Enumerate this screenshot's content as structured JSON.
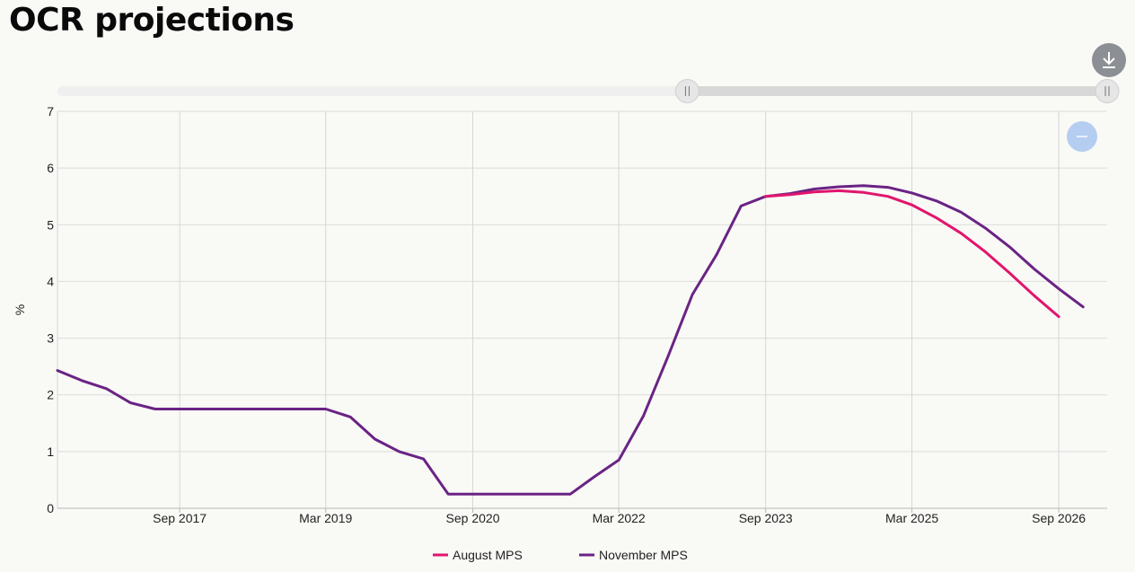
{
  "title": "OCR projections",
  "toolbar": {
    "download_icon": "download-icon",
    "zoom_icon": "zoom-out-icon"
  },
  "range_slider": {
    "start": 0.6,
    "end": 1.0
  },
  "chart_data": {
    "type": "line",
    "xlabel": "",
    "ylabel": "%",
    "ylim": [
      0,
      7
    ],
    "yticks": [
      0,
      1,
      2,
      3,
      4,
      5,
      6,
      7
    ],
    "xlim": [
      "2016-06-01",
      "2027-03-01"
    ],
    "xticks": [
      {
        "date": "2017-09-01",
        "label": "Sep 2017"
      },
      {
        "date": "2019-03-01",
        "label": "Mar 2019"
      },
      {
        "date": "2020-09-01",
        "label": "Sep 2020"
      },
      {
        "date": "2022-03-01",
        "label": "Mar 2022"
      },
      {
        "date": "2023-09-01",
        "label": "Sep 2023"
      },
      {
        "date": "2025-03-01",
        "label": "Mar 2025"
      },
      {
        "date": "2026-09-01",
        "label": "Sep 2026"
      }
    ],
    "grid": true,
    "legend": "bottom",
    "colors": {
      "August MPS": "#e2156c",
      "November MPS": "#6a2384"
    },
    "series": [
      {
        "name": "August MPS",
        "x": [
          "2023-09-01",
          "2023-12-01",
          "2024-03-01",
          "2024-06-01",
          "2024-09-01",
          "2024-12-01",
          "2025-03-01",
          "2025-06-01",
          "2025-09-01",
          "2025-12-01",
          "2026-03-01",
          "2026-06-01",
          "2026-09-01"
        ],
        "values": [
          5.5,
          5.53,
          5.58,
          5.6,
          5.57,
          5.5,
          5.35,
          5.12,
          4.85,
          4.52,
          4.15,
          3.75,
          3.38
        ]
      },
      {
        "name": "November MPS",
        "x": [
          "2016-06-01",
          "2016-09-01",
          "2016-12-01",
          "2017-03-01",
          "2017-06-01",
          "2017-09-01",
          "2017-12-01",
          "2018-03-01",
          "2018-06-01",
          "2018-09-01",
          "2018-12-01",
          "2019-03-01",
          "2019-06-01",
          "2019-09-01",
          "2019-12-01",
          "2020-03-01",
          "2020-06-01",
          "2020-09-01",
          "2020-12-01",
          "2021-03-01",
          "2021-06-01",
          "2021-09-01",
          "2021-12-01",
          "2022-03-01",
          "2022-06-01",
          "2022-09-01",
          "2022-12-01",
          "2023-03-01",
          "2023-06-01",
          "2023-09-01",
          "2023-12-01",
          "2024-03-01",
          "2024-06-01",
          "2024-09-01",
          "2024-12-01",
          "2025-03-01",
          "2025-06-01",
          "2025-09-01",
          "2025-12-01",
          "2026-03-01",
          "2026-06-01",
          "2026-09-01",
          "2026-12-01"
        ],
        "values": [
          2.43,
          2.25,
          2.11,
          1.86,
          1.75,
          1.75,
          1.75,
          1.75,
          1.75,
          1.75,
          1.75,
          1.75,
          1.61,
          1.22,
          1.0,
          0.87,
          0.25,
          0.25,
          0.25,
          0.25,
          0.25,
          0.25,
          0.56,
          0.85,
          1.63,
          2.68,
          3.77,
          4.47,
          5.33,
          5.5,
          5.55,
          5.63,
          5.67,
          5.69,
          5.66,
          5.56,
          5.42,
          5.22,
          4.94,
          4.61,
          4.22,
          3.87,
          3.55
        ]
      }
    ]
  }
}
